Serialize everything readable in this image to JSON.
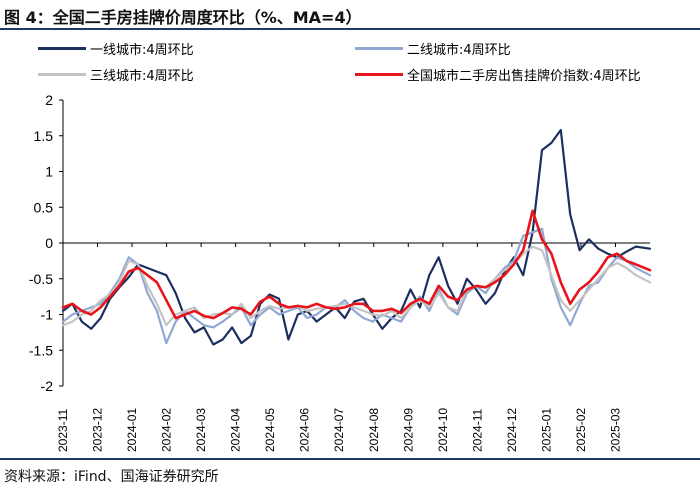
{
  "title": "图 4：全国二手房挂牌价周度环比（%、MA=4）",
  "source": "资料来源：iFind、国海证券研究所",
  "chart_data": {
    "type": "line",
    "title": "图 4：全国二手房挂牌价周度环比（%、MA=4）",
    "ylabel": "%",
    "ylim": [
      -2,
      2
    ],
    "yticks": [
      2,
      1.5,
      1,
      0.5,
      0,
      -0.5,
      -1,
      -1.5,
      -2
    ],
    "ytick_labels": [
      "2",
      "1.5",
      "1",
      "0.5",
      "0",
      "-0.5",
      "-1",
      "-1.5",
      "-2"
    ],
    "xlim": [
      0,
      1
    ],
    "xticks": [
      {
        "label": "2023-11",
        "pos": 0.0
      },
      {
        "label": "2023-12",
        "pos": 0.0588
      },
      {
        "label": "2024-01",
        "pos": 0.1176
      },
      {
        "label": "2024-02",
        "pos": 0.1765
      },
      {
        "label": "2024-03",
        "pos": 0.2353
      },
      {
        "label": "2024-04",
        "pos": 0.2941
      },
      {
        "label": "2024-05",
        "pos": 0.3529
      },
      {
        "label": "2024-06",
        "pos": 0.4118
      },
      {
        "label": "2024-07",
        "pos": 0.4706
      },
      {
        "label": "2024-08",
        "pos": 0.5294
      },
      {
        "label": "2024-09",
        "pos": 0.5882
      },
      {
        "label": "2024-10",
        "pos": 0.6471
      },
      {
        "label": "2024-11",
        "pos": 0.7059
      },
      {
        "label": "2024-12",
        "pos": 0.7647
      },
      {
        "label": "2025-01",
        "pos": 0.8235
      },
      {
        "label": "2025-02",
        "pos": 0.8824
      },
      {
        "label": "2025-03",
        "pos": 0.9412
      }
    ],
    "series": [
      {
        "name": "一线城市:4周环比",
        "color": "#1c2f5e",
        "width": 2.2,
        "legend_slot": 0,
        "x": [
          0,
          0.016,
          0.032,
          0.048,
          0.064,
          0.08,
          0.096,
          0.112,
          0.128,
          0.144,
          0.16,
          0.176,
          0.192,
          0.208,
          0.224,
          0.24,
          0.256,
          0.272,
          0.288,
          0.304,
          0.32,
          0.336,
          0.352,
          0.368,
          0.384,
          0.4,
          0.416,
          0.432,
          0.448,
          0.464,
          0.48,
          0.496,
          0.512,
          0.528,
          0.544,
          0.56,
          0.576,
          0.592,
          0.608,
          0.624,
          0.64,
          0.656,
          0.672,
          0.688,
          0.704,
          0.72,
          0.736,
          0.752,
          0.768,
          0.784,
          0.8,
          0.816,
          0.832,
          0.848,
          0.864,
          0.88,
          0.896,
          0.912,
          0.928,
          0.944,
          0.96,
          0.976,
          1.0
        ],
        "values": [
          -0.95,
          -0.85,
          -1.1,
          -1.2,
          -1.05,
          -0.78,
          -0.62,
          -0.48,
          -0.3,
          -0.35,
          -0.4,
          -0.45,
          -0.7,
          -1.05,
          -1.25,
          -1.18,
          -1.42,
          -1.35,
          -1.18,
          -1.4,
          -1.3,
          -0.85,
          -0.72,
          -0.78,
          -1.35,
          -1.0,
          -0.95,
          -1.1,
          -1.0,
          -0.9,
          -1.05,
          -0.82,
          -0.78,
          -1.0,
          -1.2,
          -1.05,
          -0.95,
          -0.65,
          -0.9,
          -0.45,
          -0.2,
          -0.6,
          -0.85,
          -0.5,
          -0.65,
          -0.85,
          -0.7,
          -0.4,
          -0.2,
          -0.45,
          0.15,
          1.3,
          1.4,
          1.58,
          0.4,
          -0.1,
          0.05,
          -0.08,
          -0.15,
          -0.2,
          -0.12,
          -0.05,
          -0.08
        ]
      },
      {
        "name": "二线城市:4周环比",
        "color": "#8fa8d4",
        "width": 2.2,
        "legend_slot": 1,
        "x": [
          0,
          0.016,
          0.032,
          0.048,
          0.064,
          0.08,
          0.096,
          0.112,
          0.128,
          0.144,
          0.16,
          0.176,
          0.192,
          0.208,
          0.224,
          0.24,
          0.256,
          0.272,
          0.288,
          0.304,
          0.32,
          0.336,
          0.352,
          0.368,
          0.384,
          0.4,
          0.416,
          0.432,
          0.448,
          0.464,
          0.48,
          0.496,
          0.512,
          0.528,
          0.544,
          0.56,
          0.576,
          0.592,
          0.608,
          0.624,
          0.64,
          0.656,
          0.672,
          0.688,
          0.704,
          0.72,
          0.736,
          0.752,
          0.768,
          0.784,
          0.8,
          0.816,
          0.832,
          0.848,
          0.864,
          0.88,
          0.896,
          0.912,
          0.928,
          0.944,
          0.96,
          0.976,
          1.0
        ],
        "values": [
          -1.1,
          -1.0,
          -0.95,
          -0.9,
          -0.85,
          -0.7,
          -0.5,
          -0.2,
          -0.3,
          -0.7,
          -0.95,
          -1.4,
          -1.1,
          -0.95,
          -1.05,
          -1.15,
          -1.18,
          -1.1,
          -1.0,
          -0.9,
          -1.15,
          -1.0,
          -0.9,
          -1.0,
          -0.95,
          -0.9,
          -1.05,
          -1.0,
          -0.9,
          -0.9,
          -0.8,
          -0.95,
          -1.05,
          -1.1,
          -1.0,
          -1.05,
          -1.1,
          -0.9,
          -0.75,
          -0.95,
          -0.65,
          -0.9,
          -1.0,
          -0.7,
          -0.6,
          -0.7,
          -0.5,
          -0.35,
          -0.25,
          0.1,
          0.15,
          0.2,
          -0.5,
          -0.9,
          -1.15,
          -0.85,
          -0.6,
          -0.55,
          -0.35,
          -0.2,
          -0.25,
          -0.35,
          -0.45
        ]
      },
      {
        "name": "三线城市:4周环比",
        "color": "#c4c4c4",
        "width": 2.2,
        "legend_slot": 2,
        "x": [
          0,
          0.016,
          0.032,
          0.048,
          0.064,
          0.08,
          0.096,
          0.112,
          0.128,
          0.144,
          0.16,
          0.176,
          0.192,
          0.208,
          0.224,
          0.24,
          0.256,
          0.272,
          0.288,
          0.304,
          0.32,
          0.336,
          0.352,
          0.368,
          0.384,
          0.4,
          0.416,
          0.432,
          0.448,
          0.464,
          0.48,
          0.496,
          0.512,
          0.528,
          0.544,
          0.56,
          0.576,
          0.592,
          0.608,
          0.624,
          0.64,
          0.656,
          0.672,
          0.688,
          0.704,
          0.72,
          0.736,
          0.752,
          0.768,
          0.784,
          0.8,
          0.816,
          0.832,
          0.848,
          0.864,
          0.88,
          0.896,
          0.912,
          0.928,
          0.944,
          0.96,
          0.976,
          1.0
        ],
        "values": [
          -1.15,
          -1.1,
          -1.0,
          -0.95,
          -0.8,
          -0.72,
          -0.55,
          -0.25,
          -0.3,
          -0.6,
          -0.85,
          -1.15,
          -1.0,
          -0.95,
          -0.9,
          -1.05,
          -1.0,
          -0.98,
          -1.0,
          -0.85,
          -1.05,
          -0.95,
          -0.88,
          -0.92,
          -0.9,
          -0.88,
          -0.95,
          -0.92,
          -0.9,
          -0.88,
          -0.85,
          -0.9,
          -0.95,
          -1.0,
          -1.02,
          -0.95,
          -1.05,
          -0.9,
          -0.8,
          -0.9,
          -0.7,
          -0.9,
          -0.95,
          -0.65,
          -0.6,
          -0.62,
          -0.5,
          -0.38,
          -0.3,
          -0.15,
          -0.05,
          -0.1,
          -0.45,
          -0.8,
          -0.95,
          -0.8,
          -0.65,
          -0.5,
          -0.35,
          -0.28,
          -0.35,
          -0.45,
          -0.55
        ]
      },
      {
        "name": "全国城市二手房出售挂牌价指数:4周环比",
        "color": "#e8141c",
        "width": 2.6,
        "legend_slot": 3,
        "x": [
          0,
          0.016,
          0.032,
          0.048,
          0.064,
          0.08,
          0.096,
          0.112,
          0.128,
          0.144,
          0.16,
          0.176,
          0.192,
          0.208,
          0.224,
          0.24,
          0.256,
          0.272,
          0.288,
          0.304,
          0.32,
          0.336,
          0.352,
          0.368,
          0.384,
          0.4,
          0.416,
          0.432,
          0.448,
          0.464,
          0.48,
          0.496,
          0.512,
          0.528,
          0.544,
          0.56,
          0.576,
          0.592,
          0.608,
          0.624,
          0.64,
          0.656,
          0.672,
          0.688,
          0.704,
          0.72,
          0.736,
          0.752,
          0.768,
          0.784,
          0.8,
          0.816,
          0.832,
          0.848,
          0.864,
          0.88,
          0.896,
          0.912,
          0.928,
          0.944,
          0.96,
          0.976,
          1.0
        ],
        "values": [
          -0.9,
          -0.85,
          -0.95,
          -1.0,
          -0.9,
          -0.75,
          -0.6,
          -0.4,
          -0.35,
          -0.45,
          -0.55,
          -0.8,
          -1.05,
          -1.0,
          -0.95,
          -1.02,
          -1.05,
          -0.98,
          -0.9,
          -0.92,
          -1.0,
          -0.82,
          -0.75,
          -0.85,
          -0.9,
          -0.88,
          -0.9,
          -0.85,
          -0.9,
          -0.92,
          -0.9,
          -0.85,
          -0.85,
          -0.95,
          -0.95,
          -0.92,
          -0.98,
          -0.85,
          -0.78,
          -0.85,
          -0.6,
          -0.75,
          -0.8,
          -0.65,
          -0.6,
          -0.62,
          -0.55,
          -0.45,
          -0.3,
          -0.1,
          0.45,
          0.05,
          -0.15,
          -0.55,
          -0.85,
          -0.65,
          -0.55,
          -0.4,
          -0.2,
          -0.15,
          -0.25,
          -0.3,
          -0.38
        ]
      }
    ]
  }
}
